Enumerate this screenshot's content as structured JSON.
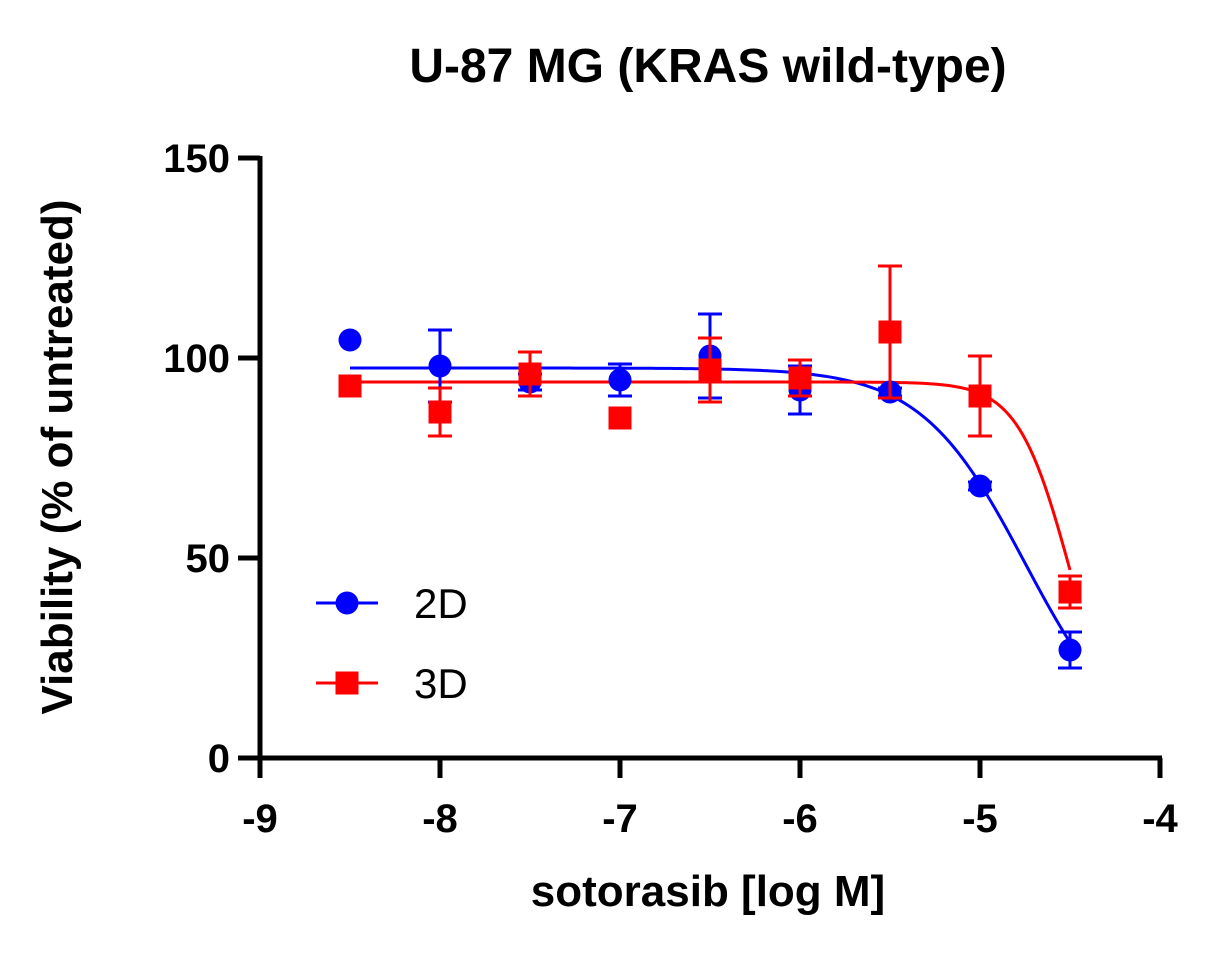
{
  "chart_data": {
    "type": "scatter",
    "title": "U-87 MG (KRAS wild-type)",
    "xlabel": "sotorasib [log M]",
    "ylabel": "Viability (% of untreated)",
    "xlim": [
      -9,
      -4
    ],
    "ylim": [
      0,
      150
    ],
    "x_ticks": [
      -9,
      -8,
      -7,
      -6,
      -5,
      -4
    ],
    "x_tick_labels": [
      "-9",
      "-8",
      "-7",
      "-6",
      "-5",
      "-4"
    ],
    "y_ticks": [
      0,
      50,
      100,
      150
    ],
    "y_tick_labels": [
      "0",
      "50",
      "100",
      "150"
    ],
    "grid": false,
    "legend_position": "bottom-left",
    "series": [
      {
        "name": "2D",
        "color": "#0000FF",
        "marker": "circle",
        "points": [
          {
            "x": -8.5,
            "y": 104.5,
            "err": 0
          },
          {
            "x": -8.0,
            "y": 98,
            "err": 9
          },
          {
            "x": -7.5,
            "y": 94,
            "err": 2
          },
          {
            "x": -7.0,
            "y": 94.5,
            "err": 4
          },
          {
            "x": -6.5,
            "y": 100.5,
            "err": 10.5
          },
          {
            "x": -6.0,
            "y": 92,
            "err": 6
          },
          {
            "x": -5.5,
            "y": 91.5,
            "err": 1
          },
          {
            "x": -5.0,
            "y": 68,
            "err": 1
          },
          {
            "x": -4.5,
            "y": 27,
            "err": 4.5
          }
        ],
        "fit": {
          "top": 97.5,
          "bottom": 0,
          "log_ic50": -4.75,
          "hill": 1.5
        }
      },
      {
        "name": "3D",
        "color": "#FF0000",
        "marker": "square",
        "points": [
          {
            "x": -8.5,
            "y": 93,
            "err": 0
          },
          {
            "x": -8.0,
            "y": 86.5,
            "err": 6
          },
          {
            "x": -7.5,
            "y": 96,
            "err": 5.5
          },
          {
            "x": -7.0,
            "y": 85,
            "err": 0
          },
          {
            "x": -6.5,
            "y": 97,
            "err": 8
          },
          {
            "x": -6.0,
            "y": 95,
            "err": 4.5
          },
          {
            "x": -5.5,
            "y": 106.5,
            "err": 16.5
          },
          {
            "x": -5.0,
            "y": 90.5,
            "err": 10
          },
          {
            "x": -4.5,
            "y": 41.5,
            "err": 4
          }
        ],
        "fit": {
          "top": 94,
          "bottom": 0,
          "log_ic50": -4.5,
          "hill": 3
        }
      }
    ]
  }
}
